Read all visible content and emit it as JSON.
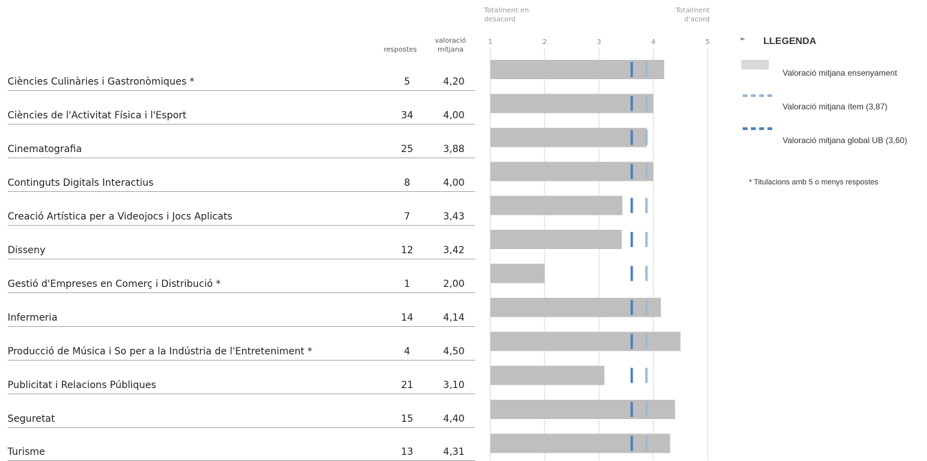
{
  "header": {
    "scale_low_label_1": "Totalment en",
    "scale_low_label_2": "desacord",
    "scale_high_label_1": "Totalment",
    "scale_high_label_2": "d'acord",
    "col_respostes": "respostes",
    "col_valoracio_1": "valoració",
    "col_valoracio_2": "mitjana"
  },
  "legend": {
    "title": "LLEGENDA",
    "item_bar": "Valoració mitjana ensenyament",
    "item_item": "Valoració mitjana ítem (3,87)",
    "item_global": "Valoració mitjana global UB (3,60)",
    "footnote": "* Titulacions amb 5 o menys respostes",
    "colors": {
      "bar": "#d9d9d9",
      "item_marker": "#9db9d8",
      "global_marker": "#4f81bd"
    }
  },
  "chart_data": {
    "type": "bar",
    "orientation": "horizontal",
    "xlim": [
      1,
      5
    ],
    "ticks": [
      "1",
      "2",
      "3",
      "4",
      "5"
    ],
    "categories": [
      "Ciències Culinàries i Gastronòmiques *",
      "Ciències de l'Activitat Física i l'Esport",
      "Cinematografia",
      "Continguts Digitals Interactius",
      "Creació Artística per a Videojocs i Jocs Aplicats",
      "Disseny",
      "Gestió d'Empreses en Comerç i Distribució *",
      "Infermeria",
      "Producció de Música i So per a la Indústria de l'Entreteniment *",
      "Publicitat i Relacions Públiques",
      "Seguretat",
      "Turisme"
    ],
    "respostes": [
      "5",
      "34",
      "25",
      "8",
      "7",
      "12",
      "1",
      "14",
      "4",
      "21",
      "15",
      "13"
    ],
    "valoracio_text": [
      "4,20",
      "4,00",
      "3,88",
      "4,00",
      "3,43",
      "3,42",
      "2,00",
      "4,14",
      "4,50",
      "3,10",
      "4,40",
      "4,31"
    ],
    "values": [
      4.2,
      4.0,
      3.88,
      4.0,
      3.43,
      3.42,
      2.0,
      4.14,
      4.5,
      3.1,
      4.4,
      4.31
    ],
    "item_mean": 3.87,
    "global_mean": 3.6,
    "grid": true,
    "bar_color": "#bfbfbf",
    "item_marker_color": "#9db9d8",
    "global_marker_color": "#4f81bd"
  }
}
